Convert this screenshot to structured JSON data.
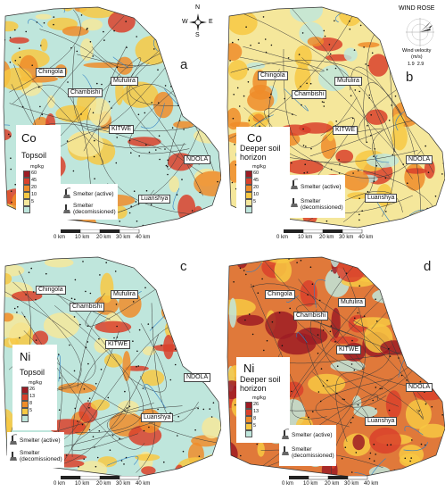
{
  "compass": {
    "n": "N",
    "e": "E",
    "s": "S",
    "w": "W"
  },
  "wind_rose": {
    "title": "WIND ROSE",
    "caption_line1": "Wind velocity",
    "caption_line2": "(m/s)",
    "values": "1.9  2.9"
  },
  "smelter_labels": {
    "active": "Smelter (active)",
    "decom_line1": "Smelter",
    "decom_line2": "(decomissioned)"
  },
  "scale_bar": [
    "0 km",
    "10 km",
    "20 km",
    "30 km",
    "40 km"
  ],
  "cities": [
    "Chingola",
    "Mufulira",
    "Chambishi",
    "KITWE",
    "NDOLA",
    "Luanshya"
  ],
  "colors": {
    "low": "#bfe6dc",
    "c2": "#f5e79b",
    "c3": "#f7c843",
    "c4": "#ef8c2a",
    "c5": "#d9412c",
    "high": "#9e1c24",
    "road": "#3a3a3a",
    "river": "#2f7fc4"
  },
  "panels": [
    {
      "letter": "a",
      "element": "Co",
      "layer_line1": "Topsoil",
      "layer_line2": "",
      "unit": "mg/kg",
      "classes": [
        "60",
        "45",
        "20",
        "10",
        "5"
      ],
      "bg": "#bfe6dc"
    },
    {
      "letter": "b",
      "element": "Co",
      "layer_line1": "Deeper soil",
      "layer_line2": "horizon",
      "unit": "mg/kg",
      "classes": [
        "60",
        "45",
        "20",
        "10",
        "5"
      ],
      "bg": "#f5e79b"
    },
    {
      "letter": "c",
      "element": "Ni",
      "layer_line1": "Topsoil",
      "layer_line2": "",
      "unit": "mg/kg",
      "classes": [
        "26",
        "13",
        "8",
        "5"
      ],
      "bg": "#bfe6dc"
    },
    {
      "letter": "d",
      "element": "Ni",
      "layer_line1": "Deeper soil",
      "layer_line2": "horizon",
      "unit": "mg/kg",
      "classes": [
        "26",
        "13",
        "8",
        "5"
      ],
      "bg": "#e0793a"
    }
  ]
}
